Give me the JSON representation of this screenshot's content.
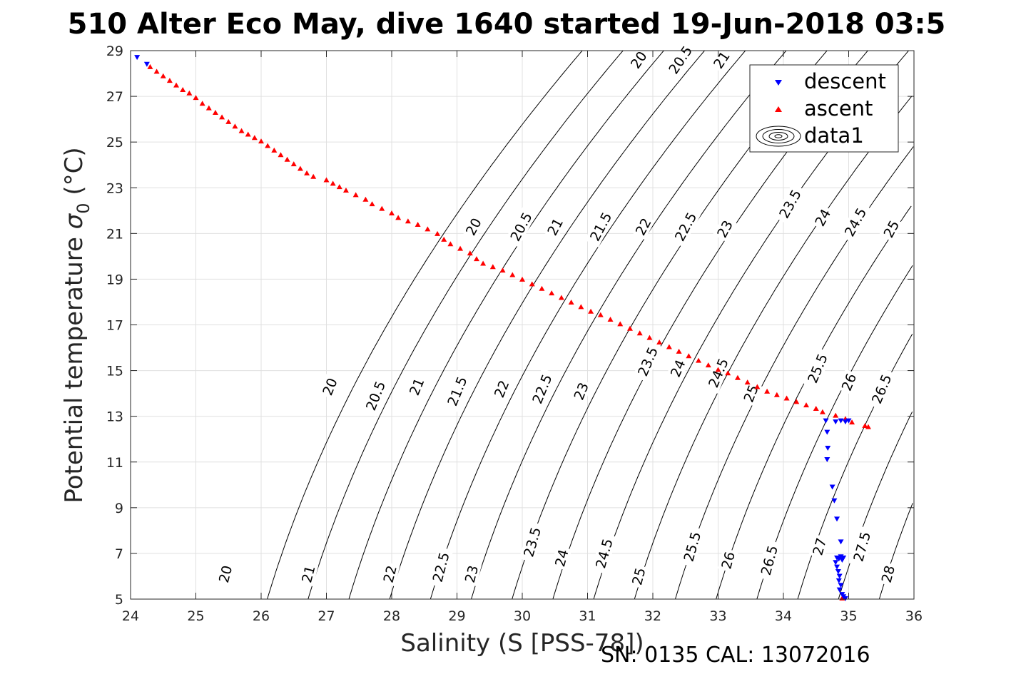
{
  "chart_data": {
    "type": "scatter",
    "title": "510 Alter Eco May, dive 1640 started 19-Jun-2018 03:5",
    "xlabel": "Salinity (S [PSS-78])",
    "ylabel_main": "Potential temperature ",
    "ylabel_sigma": "σ",
    "ylabel_sub": "0",
    "ylabel_unit": " (°C)",
    "footer": "SN: 0135  CAL: 13072016",
    "xlim": [
      24,
      36
    ],
    "ylim": [
      5,
      29
    ],
    "xticks": [
      24,
      25,
      26,
      27,
      28,
      29,
      30,
      31,
      32,
      33,
      34,
      35,
      36
    ],
    "yticks": [
      5,
      7,
      9,
      11,
      13,
      15,
      17,
      19,
      21,
      23,
      25,
      27,
      29
    ],
    "grid": true,
    "legend_position": "top-right",
    "legend": [
      "descent",
      "ascent",
      "data1"
    ],
    "colors": {
      "descent": "#0000ff",
      "ascent": "#ff0000",
      "contour": "#000000",
      "grid": "#e0e0e0"
    },
    "contour_levels": [
      20,
      20.5,
      21,
      21.5,
      22,
      22.5,
      23,
      23.5,
      24,
      24.5,
      25,
      25.5,
      26,
      26.5,
      27,
      27.5,
      28
    ],
    "contour_labels": [
      {
        "text": "20",
        "x": 25.45,
        "y": 6.1
      },
      {
        "text": "21",
        "x": 26.72,
        "y": 6.1
      },
      {
        "text": "22",
        "x": 27.97,
        "y": 6.1
      },
      {
        "text": "22.5",
        "x": 28.75,
        "y": 6.4
      },
      {
        "text": "23",
        "x": 29.22,
        "y": 6.1
      },
      {
        "text": "23.5",
        "x": 30.15,
        "y": 7.5
      },
      {
        "text": "24",
        "x": 30.6,
        "y": 6.8
      },
      {
        "text": "24.5",
        "x": 31.25,
        "y": 7.0
      },
      {
        "text": "25",
        "x": 31.78,
        "y": 6.0
      },
      {
        "text": "25.5",
        "x": 32.6,
        "y": 7.3
      },
      {
        "text": "26",
        "x": 33.15,
        "y": 6.7
      },
      {
        "text": "26.5",
        "x": 33.78,
        "y": 6.7
      },
      {
        "text": "27",
        "x": 34.55,
        "y": 7.3
      },
      {
        "text": "27.5",
        "x": 35.2,
        "y": 7.3
      },
      {
        "text": "28",
        "x": 35.6,
        "y": 6.1
      },
      {
        "text": "20",
        "x": 27.05,
        "y": 14.3
      },
      {
        "text": "20.5",
        "x": 27.75,
        "y": 13.9
      },
      {
        "text": "21",
        "x": 28.38,
        "y": 14.3
      },
      {
        "text": "21.5",
        "x": 29.0,
        "y": 14.1
      },
      {
        "text": "22",
        "x": 29.68,
        "y": 14.2
      },
      {
        "text": "22.5",
        "x": 30.3,
        "y": 14.2
      },
      {
        "text": "23",
        "x": 30.9,
        "y": 14.1
      },
      {
        "text": "23.5",
        "x": 31.92,
        "y": 15.4
      },
      {
        "text": "24",
        "x": 32.38,
        "y": 15.1
      },
      {
        "text": "24.5",
        "x": 33.0,
        "y": 14.9
      },
      {
        "text": "25",
        "x": 33.5,
        "y": 14.0
      },
      {
        "text": "25.5",
        "x": 34.52,
        "y": 15.1
      },
      {
        "text": "26",
        "x": 35.0,
        "y": 14.5
      },
      {
        "text": "26.5",
        "x": 35.5,
        "y": 14.2
      },
      {
        "text": "20",
        "x": 29.25,
        "y": 21.3
      },
      {
        "text": "20.5",
        "x": 29.98,
        "y": 21.3
      },
      {
        "text": "21",
        "x": 30.5,
        "y": 21.3
      },
      {
        "text": "21.5",
        "x": 31.2,
        "y": 21.3
      },
      {
        "text": "22",
        "x": 31.85,
        "y": 21.3
      },
      {
        "text": "22.5",
        "x": 32.5,
        "y": 21.3
      },
      {
        "text": "23",
        "x": 33.1,
        "y": 21.2
      },
      {
        "text": "23.5",
        "x": 34.1,
        "y": 22.3
      },
      {
        "text": "24",
        "x": 34.6,
        "y": 21.7
      },
      {
        "text": "24.5",
        "x": 35.1,
        "y": 21.5
      },
      {
        "text": "25",
        "x": 35.65,
        "y": 21.2
      },
      {
        "text": "20",
        "x": 31.78,
        "y": 28.6
      },
      {
        "text": "20.5",
        "x": 32.42,
        "y": 28.6
      },
      {
        "text": "21",
        "x": 33.05,
        "y": 28.6
      }
    ],
    "ascent": [
      {
        "x": 24.3,
        "y": 28.3
      },
      {
        "x": 24.4,
        "y": 28.1
      },
      {
        "x": 24.5,
        "y": 27.9
      },
      {
        "x": 24.6,
        "y": 27.7
      },
      {
        "x": 24.7,
        "y": 27.5
      },
      {
        "x": 24.8,
        "y": 27.3
      },
      {
        "x": 24.9,
        "y": 27.15
      },
      {
        "x": 25.0,
        "y": 26.95
      },
      {
        "x": 25.1,
        "y": 26.7
      },
      {
        "x": 25.2,
        "y": 26.5
      },
      {
        "x": 25.3,
        "y": 26.3
      },
      {
        "x": 25.4,
        "y": 26.1
      },
      {
        "x": 25.5,
        "y": 25.9
      },
      {
        "x": 25.6,
        "y": 25.7
      },
      {
        "x": 25.7,
        "y": 25.5
      },
      {
        "x": 25.8,
        "y": 25.35
      },
      {
        "x": 25.9,
        "y": 25.2
      },
      {
        "x": 26.0,
        "y": 25.05
      },
      {
        "x": 26.1,
        "y": 24.85
      },
      {
        "x": 26.2,
        "y": 24.65
      },
      {
        "x": 26.3,
        "y": 24.45
      },
      {
        "x": 26.4,
        "y": 24.25
      },
      {
        "x": 26.5,
        "y": 24.05
      },
      {
        "x": 26.6,
        "y": 23.85
      },
      {
        "x": 26.7,
        "y": 23.65
      },
      {
        "x": 26.8,
        "y": 23.5
      },
      {
        "x": 27.0,
        "y": 23.35
      },
      {
        "x": 27.1,
        "y": 23.2
      },
      {
        "x": 27.2,
        "y": 23.05
      },
      {
        "x": 27.3,
        "y": 22.9
      },
      {
        "x": 27.45,
        "y": 22.7
      },
      {
        "x": 27.6,
        "y": 22.5
      },
      {
        "x": 27.7,
        "y": 22.3
      },
      {
        "x": 27.85,
        "y": 22.1
      },
      {
        "x": 28.0,
        "y": 21.9
      },
      {
        "x": 28.1,
        "y": 21.7
      },
      {
        "x": 28.25,
        "y": 21.55
      },
      {
        "x": 28.4,
        "y": 21.4
      },
      {
        "x": 28.55,
        "y": 21.2
      },
      {
        "x": 28.7,
        "y": 21.0
      },
      {
        "x": 28.8,
        "y": 20.75
      },
      {
        "x": 28.9,
        "y": 20.55
      },
      {
        "x": 29.05,
        "y": 20.35
      },
      {
        "x": 29.2,
        "y": 20.15
      },
      {
        "x": 29.3,
        "y": 19.9
      },
      {
        "x": 29.4,
        "y": 19.7
      },
      {
        "x": 29.55,
        "y": 19.55
      },
      {
        "x": 29.7,
        "y": 19.4
      },
      {
        "x": 29.85,
        "y": 19.2
      },
      {
        "x": 30.0,
        "y": 19.0
      },
      {
        "x": 30.15,
        "y": 18.8
      },
      {
        "x": 30.3,
        "y": 18.6
      },
      {
        "x": 30.45,
        "y": 18.4
      },
      {
        "x": 30.6,
        "y": 18.2
      },
      {
        "x": 30.75,
        "y": 18.0
      },
      {
        "x": 30.9,
        "y": 17.8
      },
      {
        "x": 31.05,
        "y": 17.6
      },
      {
        "x": 31.2,
        "y": 17.45
      },
      {
        "x": 31.35,
        "y": 17.25
      },
      {
        "x": 31.5,
        "y": 17.05
      },
      {
        "x": 31.65,
        "y": 16.85
      },
      {
        "x": 31.8,
        "y": 16.65
      },
      {
        "x": 31.95,
        "y": 16.45
      },
      {
        "x": 32.1,
        "y": 16.25
      },
      {
        "x": 32.25,
        "y": 16.05
      },
      {
        "x": 32.4,
        "y": 15.85
      },
      {
        "x": 32.55,
        "y": 15.65
      },
      {
        "x": 32.7,
        "y": 15.45
      },
      {
        "x": 32.85,
        "y": 15.25
      },
      {
        "x": 33.0,
        "y": 15.05
      },
      {
        "x": 33.15,
        "y": 14.9
      },
      {
        "x": 33.3,
        "y": 14.7
      },
      {
        "x": 33.45,
        "y": 14.5
      },
      {
        "x": 33.6,
        "y": 14.3
      },
      {
        "x": 33.75,
        "y": 14.1
      },
      {
        "x": 33.9,
        "y": 13.95
      },
      {
        "x": 34.05,
        "y": 13.8
      },
      {
        "x": 34.2,
        "y": 13.65
      },
      {
        "x": 34.35,
        "y": 13.5
      },
      {
        "x": 34.5,
        "y": 13.35
      },
      {
        "x": 34.6,
        "y": 13.2
      },
      {
        "x": 34.8,
        "y": 13.05
      },
      {
        "x": 34.95,
        "y": 12.9
      },
      {
        "x": 35.05,
        "y": 12.75
      },
      {
        "x": 35.25,
        "y": 12.6
      },
      {
        "x": 35.3,
        "y": 12.55
      },
      {
        "x": 34.9,
        "y": 5.05
      }
    ],
    "descent": [
      {
        "x": 24.1,
        "y": 28.7
      },
      {
        "x": 24.25,
        "y": 28.4
      },
      {
        "x": 34.65,
        "y": 12.8
      },
      {
        "x": 34.67,
        "y": 12.3
      },
      {
        "x": 34.68,
        "y": 11.6
      },
      {
        "x": 34.67,
        "y": 11.1
      },
      {
        "x": 34.75,
        "y": 9.9
      },
      {
        "x": 34.78,
        "y": 9.3
      },
      {
        "x": 34.82,
        "y": 8.5
      },
      {
        "x": 34.88,
        "y": 7.5
      },
      {
        "x": 34.82,
        "y": 6.8
      },
      {
        "x": 34.85,
        "y": 6.75
      },
      {
        "x": 34.88,
        "y": 6.85
      },
      {
        "x": 34.9,
        "y": 6.7
      },
      {
        "x": 34.92,
        "y": 6.8
      },
      {
        "x": 34.8,
        "y": 6.6
      },
      {
        "x": 34.82,
        "y": 6.4
      },
      {
        "x": 34.84,
        "y": 6.2
      },
      {
        "x": 34.86,
        "y": 6.0
      },
      {
        "x": 34.85,
        "y": 5.8
      },
      {
        "x": 34.88,
        "y": 5.6
      },
      {
        "x": 34.86,
        "y": 5.4
      },
      {
        "x": 34.9,
        "y": 5.2
      },
      {
        "x": 34.92,
        "y": 5.1
      },
      {
        "x": 34.95,
        "y": 5.02
      },
      {
        "x": 34.8,
        "y": 12.75
      },
      {
        "x": 34.88,
        "y": 12.8
      },
      {
        "x": 34.95,
        "y": 12.75
      },
      {
        "x": 35.0,
        "y": 12.8
      }
    ]
  }
}
